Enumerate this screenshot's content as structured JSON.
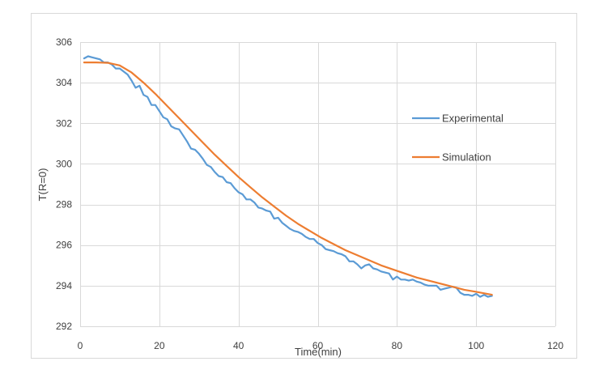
{
  "chart_data": {
    "type": "line",
    "title": "",
    "xlabel": "Time(min)",
    "ylabel": "T(R=0)",
    "xlim": [
      0,
      120
    ],
    "ylim": [
      292,
      306
    ],
    "x_ticks": [
      0,
      20,
      40,
      60,
      80,
      100,
      120
    ],
    "y_ticks": [
      292,
      294,
      296,
      298,
      300,
      302,
      304,
      306
    ],
    "grid": true,
    "legend_position": "right",
    "series": [
      {
        "name": "Experimental",
        "color": "#5b9bd5",
        "x": [
          1,
          2,
          3,
          4,
          5,
          6,
          7,
          8,
          9,
          10,
          11,
          12,
          13,
          14,
          15,
          16,
          17,
          18,
          19,
          20,
          21,
          22,
          23,
          24,
          25,
          26,
          27,
          28,
          29,
          30,
          31,
          32,
          33,
          34,
          35,
          36,
          37,
          38,
          39,
          40,
          41,
          42,
          43,
          44,
          45,
          46,
          47,
          48,
          49,
          50,
          51,
          52,
          53,
          54,
          55,
          56,
          57,
          58,
          59,
          60,
          61,
          62,
          63,
          64,
          65,
          66,
          67,
          68,
          69,
          70,
          71,
          72,
          73,
          74,
          75,
          76,
          77,
          78,
          79,
          80,
          81,
          82,
          83,
          84,
          85,
          86,
          87,
          88,
          89,
          90,
          91,
          92,
          93,
          94,
          95,
          96,
          97,
          98,
          99,
          100,
          101,
          102,
          103,
          104
        ],
        "values": [
          305.2,
          305.3,
          305.25,
          305.2,
          305.15,
          305.0,
          305.0,
          304.9,
          304.7,
          304.7,
          304.55,
          304.4,
          304.1,
          303.75,
          303.85,
          303.4,
          303.3,
          302.9,
          302.9,
          302.6,
          302.3,
          302.2,
          301.85,
          301.75,
          301.7,
          301.4,
          301.1,
          300.75,
          300.7,
          300.5,
          300.25,
          299.95,
          299.85,
          299.6,
          299.4,
          299.35,
          299.1,
          299.05,
          298.8,
          298.6,
          298.5,
          298.25,
          298.25,
          298.1,
          297.85,
          297.8,
          297.7,
          297.65,
          297.3,
          297.35,
          297.1,
          296.95,
          296.8,
          296.7,
          296.65,
          296.55,
          296.4,
          296.3,
          296.3,
          296.1,
          296.0,
          295.8,
          295.75,
          295.7,
          295.6,
          295.55,
          295.45,
          295.2,
          295.2,
          295.05,
          294.85,
          295.0,
          295.05,
          294.85,
          294.8,
          294.7,
          294.65,
          294.6,
          294.3,
          294.45,
          294.3,
          294.3,
          294.25,
          294.3,
          294.2,
          294.15,
          294.05,
          294.0,
          294.0,
          294.0,
          293.8,
          293.85,
          293.9,
          293.95,
          293.9,
          293.65,
          293.55,
          293.55,
          293.5,
          293.6,
          293.45,
          293.55,
          293.45,
          293.5
        ]
      },
      {
        "name": "Simulation",
        "color": "#ed7d31",
        "x": [
          1,
          4,
          7,
          10,
          13,
          16,
          19,
          22,
          25,
          28,
          31,
          34,
          37,
          40,
          43,
          46,
          49,
          52,
          55,
          58,
          61,
          64,
          67,
          70,
          73,
          76,
          79,
          82,
          85,
          88,
          91,
          94,
          97,
          100,
          104
        ],
        "values": [
          305.0,
          305.0,
          304.98,
          304.85,
          304.5,
          304.0,
          303.45,
          302.85,
          302.25,
          301.65,
          301.05,
          300.45,
          299.9,
          299.35,
          298.85,
          298.35,
          297.9,
          297.45,
          297.05,
          296.7,
          296.35,
          296.05,
          295.75,
          295.5,
          295.25,
          295.0,
          294.8,
          294.6,
          294.4,
          294.25,
          294.1,
          293.95,
          293.8,
          293.7,
          293.55
        ]
      }
    ]
  }
}
